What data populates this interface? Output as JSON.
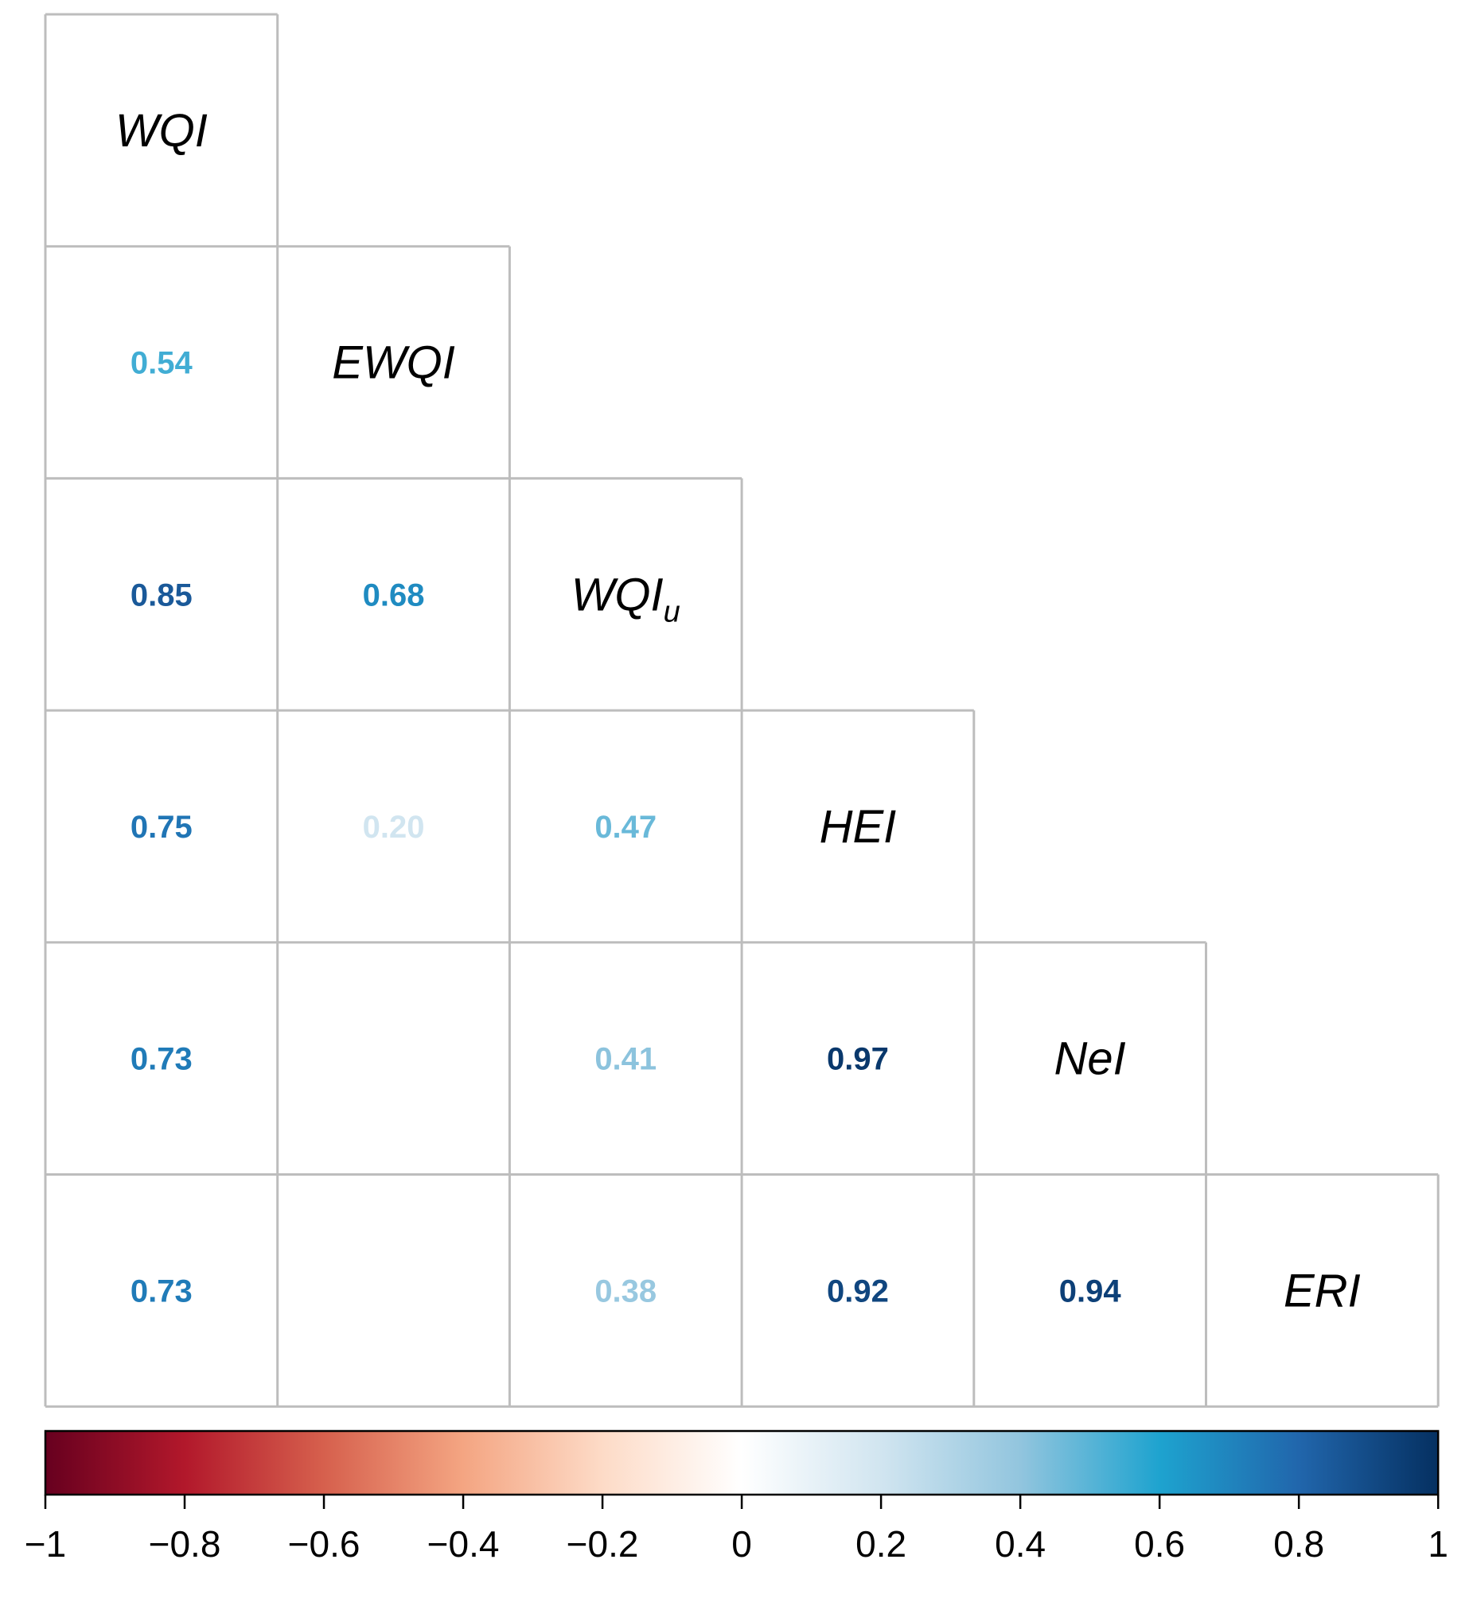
{
  "chart_data": {
    "type": "heatmap",
    "variables": [
      "WQI",
      "EWQI",
      "WQIu",
      "HEI",
      "NeI",
      "ERI"
    ],
    "diagonal_labels": [
      {
        "base": "WQI",
        "sub": ""
      },
      {
        "base": "EWQI",
        "sub": ""
      },
      {
        "base": "WQI",
        "sub": "u"
      },
      {
        "base": "HEI",
        "sub": ""
      },
      {
        "base": "NeI",
        "sub": ""
      },
      {
        "base": "ERI",
        "sub": ""
      }
    ],
    "cells": [
      {
        "row": 1,
        "col": 0,
        "value": 0.54,
        "label": "0.54"
      },
      {
        "row": 2,
        "col": 0,
        "value": 0.85,
        "label": "0.85"
      },
      {
        "row": 2,
        "col": 1,
        "value": 0.68,
        "label": "0.68"
      },
      {
        "row": 3,
        "col": 0,
        "value": 0.75,
        "label": "0.75"
      },
      {
        "row": 3,
        "col": 1,
        "value": 0.2,
        "label": "0.20"
      },
      {
        "row": 3,
        "col": 2,
        "value": 0.47,
        "label": "0.47"
      },
      {
        "row": 4,
        "col": 0,
        "value": 0.73,
        "label": "0.73"
      },
      {
        "row": 4,
        "col": 2,
        "value": 0.41,
        "label": "0.41"
      },
      {
        "row": 4,
        "col": 3,
        "value": 0.97,
        "label": "0.97"
      },
      {
        "row": 5,
        "col": 0,
        "value": 0.73,
        "label": "0.73"
      },
      {
        "row": 5,
        "col": 2,
        "value": 0.38,
        "label": "0.38"
      },
      {
        "row": 5,
        "col": 3,
        "value": 0.92,
        "label": "0.92"
      },
      {
        "row": 5,
        "col": 4,
        "value": 0.94,
        "label": "0.94"
      }
    ],
    "colorbar": {
      "range": [
        -1,
        1
      ],
      "ticks": [
        -1,
        -0.8,
        -0.6,
        -0.4,
        -0.2,
        0,
        0.2,
        0.4,
        0.6,
        0.8,
        1
      ],
      "tick_labels": [
        "−1",
        "−0.8",
        "−0.6",
        "−0.4",
        "−0.2",
        "0",
        "0.2",
        "0.4",
        "0.6",
        "0.8",
        "1"
      ],
      "palette": [
        {
          "value": -1.0,
          "color": "#67001f"
        },
        {
          "value": -0.8,
          "color": "#b2182b"
        },
        {
          "value": -0.6,
          "color": "#d6604d"
        },
        {
          "value": -0.4,
          "color": "#f4a582"
        },
        {
          "value": -0.2,
          "color": "#fddbc7"
        },
        {
          "value": 0.0,
          "color": "#ffffff"
        },
        {
          "value": 0.2,
          "color": "#d1e5f0"
        },
        {
          "value": 0.4,
          "color": "#92c5de"
        },
        {
          "value": 0.6,
          "color": "#1ea3cf"
        },
        {
          "value": 0.8,
          "color": "#2166ac"
        },
        {
          "value": 1.0,
          "color": "#053061"
        }
      ]
    },
    "grid": true,
    "legend_position": "bottom"
  }
}
